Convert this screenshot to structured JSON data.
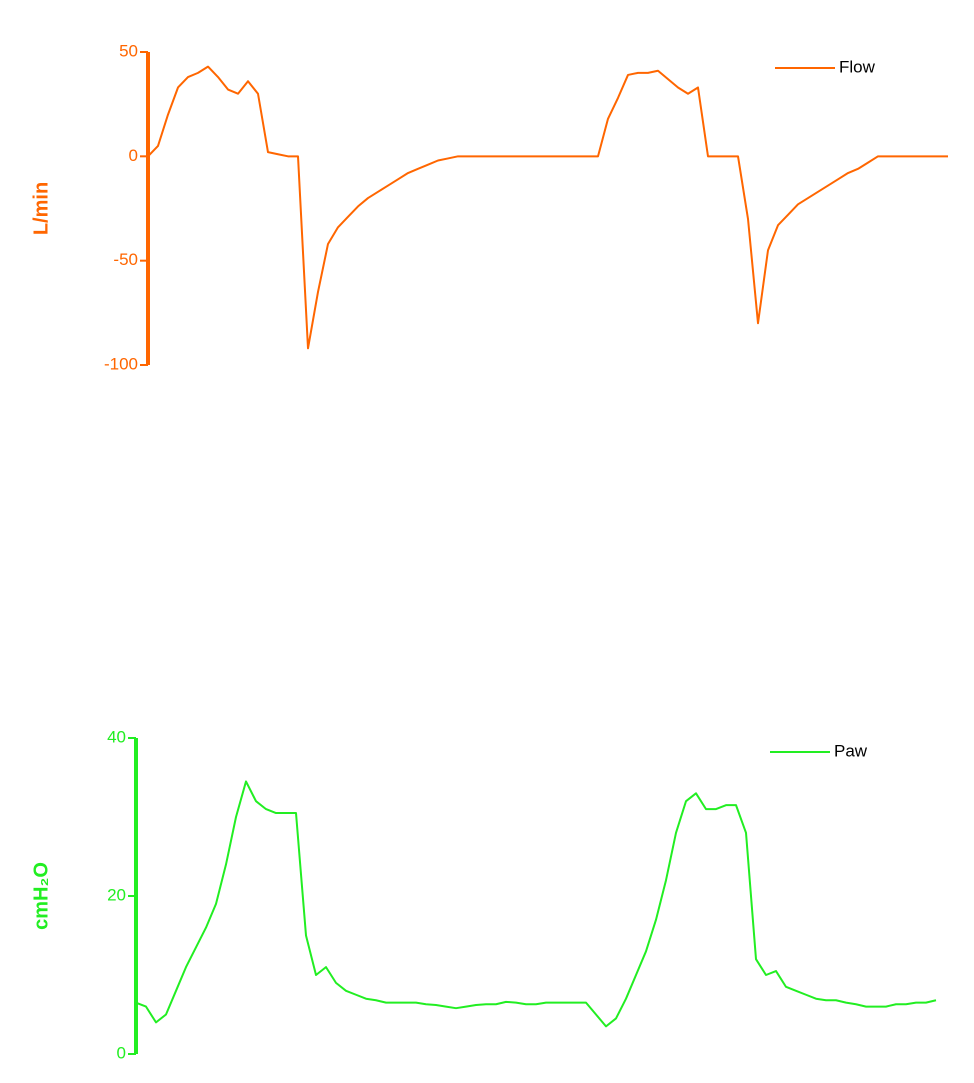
{
  "chart_data": [
    {
      "type": "line",
      "ylabel": "L/min",
      "ylim": [
        -100,
        50
      ],
      "yticks": [
        -100,
        -50,
        0,
        50
      ],
      "legend": "upper right",
      "categories": [
        null,
        null,
        null,
        null,
        null,
        null,
        null,
        null,
        null,
        null,
        null,
        null,
        null,
        null,
        null,
        null,
        null,
        null,
        null,
        null,
        null,
        null,
        null,
        null,
        null,
        null,
        null,
        null,
        null,
        null,
        null,
        null,
        null,
        null,
        null,
        null,
        null,
        null,
        null,
        null,
        null,
        null,
        null,
        null,
        null,
        null,
        null,
        null,
        null,
        null,
        null,
        null,
        null,
        null,
        null,
        null,
        null,
        null,
        null,
        null,
        null,
        null,
        null,
        null,
        null,
        null,
        null,
        null,
        null,
        null,
        null,
        null,
        null,
        null,
        null,
        null,
        null,
        null,
        null,
        null,
        null
      ],
      "series": [
        {
          "name": "Flow",
          "color": "#ff6600",
          "values": [
            0,
            5,
            20,
            33,
            38,
            40,
            43,
            38,
            32,
            30,
            36,
            30,
            2,
            1,
            0,
            0,
            -92,
            -65,
            -42,
            -34,
            -29,
            -24,
            -20,
            -17,
            -14,
            -11,
            -8,
            -6,
            -4,
            -2,
            -1,
            0,
            0,
            0,
            0,
            0,
            0,
            0,
            0,
            0,
            0,
            0,
            0,
            0,
            0,
            0,
            18,
            28,
            39,
            40,
            40,
            41,
            37,
            33,
            30,
            33,
            0,
            0,
            0,
            0,
            -30,
            -80,
            -45,
            -33,
            -28,
            -23,
            -20,
            -17,
            -14,
            -11,
            -8,
            -6,
            -3,
            0,
            0,
            0,
            0,
            0,
            0,
            0,
            0
          ]
        }
      ]
    },
    {
      "type": "line",
      "ylabel": "cmH₂O",
      "ylim": [
        0,
        40
      ],
      "yticks": [
        0,
        20,
        40
      ],
      "legend": "upper right",
      "categories": [
        null,
        null,
        null,
        null,
        null,
        null,
        null,
        null,
        null,
        null,
        null,
        null,
        null,
        null,
        null,
        null,
        null,
        null,
        null,
        null,
        null,
        null,
        null,
        null,
        null,
        null,
        null,
        null,
        null,
        null,
        null,
        null,
        null,
        null,
        null,
        null,
        null,
        null,
        null,
        null,
        null,
        null,
        null,
        null,
        null,
        null,
        null,
        null,
        null,
        null,
        null,
        null,
        null,
        null,
        null,
        null,
        null,
        null,
        null,
        null,
        null,
        null,
        null,
        null,
        null,
        null,
        null,
        null,
        null,
        null,
        null,
        null,
        null,
        null,
        null,
        null,
        null,
        null,
        null,
        null,
        null
      ],
      "series": [
        {
          "name": "Paw",
          "color": "#22ee22",
          "values": [
            6.5,
            6,
            4,
            5,
            8,
            11,
            13.5,
            16,
            19,
            24,
            30,
            34.5,
            32,
            31,
            30.5,
            30.5,
            30.5,
            15,
            10,
            11,
            9,
            8,
            7.5,
            7,
            6.8,
            6.5,
            6.5,
            6.5,
            6.5,
            6.3,
            6.2,
            6,
            5.8,
            6,
            6.2,
            6.3,
            6.3,
            6.6,
            6.5,
            6.3,
            6.3,
            6.5,
            6.5,
            6.5,
            6.5,
            6.5,
            5,
            3.5,
            4.5,
            7,
            10,
            13,
            17,
            22,
            28,
            32,
            33,
            31,
            31,
            31.5,
            31.5,
            28,
            12,
            10,
            10.5,
            8.5,
            8,
            7.5,
            7,
            6.8,
            6.8,
            6.5,
            6.3,
            6,
            6,
            6,
            6.3,
            6.3,
            6.5,
            6.5,
            6.8
          ]
        }
      ]
    }
  ]
}
